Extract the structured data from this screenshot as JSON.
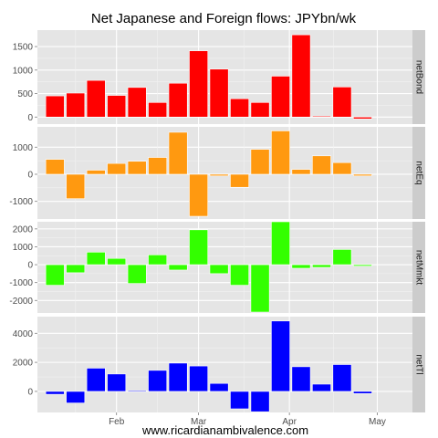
{
  "chart_data": {
    "type": "bar",
    "title": "Net Japanese and Foreign flows: JPYbn/wk",
    "caption": "www.ricardianambivalence.com",
    "x_tick_labels": [
      "Feb",
      "Mar",
      "Apr",
      "May"
    ],
    "x_ticks": [
      "2013-02-03",
      "2013-03-03",
      "2013-04-03",
      "2013-05-03"
    ],
    "x": [
      "2013-01-13",
      "2013-01-20",
      "2013-01-27",
      "2013-02-03",
      "2013-02-10",
      "2013-02-17",
      "2013-02-24",
      "2013-03-03",
      "2013-03-10",
      "2013-03-17",
      "2013-03-24",
      "2013-03-31",
      "2013-04-07",
      "2013-04-14",
      "2013-04-21",
      "2013-04-28",
      "2013-05-05"
    ],
    "x_range": [
      "2013-01-07",
      "2013-05-15"
    ],
    "panels": [
      {
        "name": "netBond",
        "color": "#FF0000",
        "ylim": [
          -150,
          1850
        ],
        "yticks": [
          0,
          500,
          1000,
          1500
        ],
        "values": [
          450,
          510,
          780,
          460,
          630,
          310,
          720,
          1410,
          1020,
          390,
          310,
          870,
          1750,
          20,
          640,
          -40,
          null
        ]
      },
      {
        "name": "netEq",
        "color": "#FF9910",
        "ylim": [
          -1650,
          1750
        ],
        "yticks": [
          -1000,
          0,
          1000
        ],
        "values": [
          550,
          -900,
          150,
          400,
          480,
          620,
          1550,
          -1550,
          -60,
          -480,
          920,
          1600,
          180,
          680,
          430,
          -60,
          null
        ]
      },
      {
        "name": "netMmkt",
        "color": "#33FF00",
        "ylim": [
          -2700,
          2400
        ],
        "yticks": [
          -2000,
          -1000,
          0,
          1000,
          2000
        ],
        "values": [
          -1150,
          -450,
          700,
          350,
          -1050,
          550,
          -300,
          1950,
          -500,
          -1150,
          -2650,
          2400,
          -200,
          -150,
          850,
          -80,
          null
        ]
      },
      {
        "name": "netTl",
        "color": "#0000FF",
        "ylim": [
          -1450,
          5150
        ],
        "yticks": [
          0,
          2000,
          4000
        ],
        "values": [
          -200,
          -800,
          1600,
          1200,
          50,
          1450,
          1950,
          1750,
          550,
          -1200,
          -1400,
          4850,
          1700,
          500,
          1850,
          -150,
          null
        ]
      }
    ],
    "grid": true,
    "legend": "none"
  }
}
